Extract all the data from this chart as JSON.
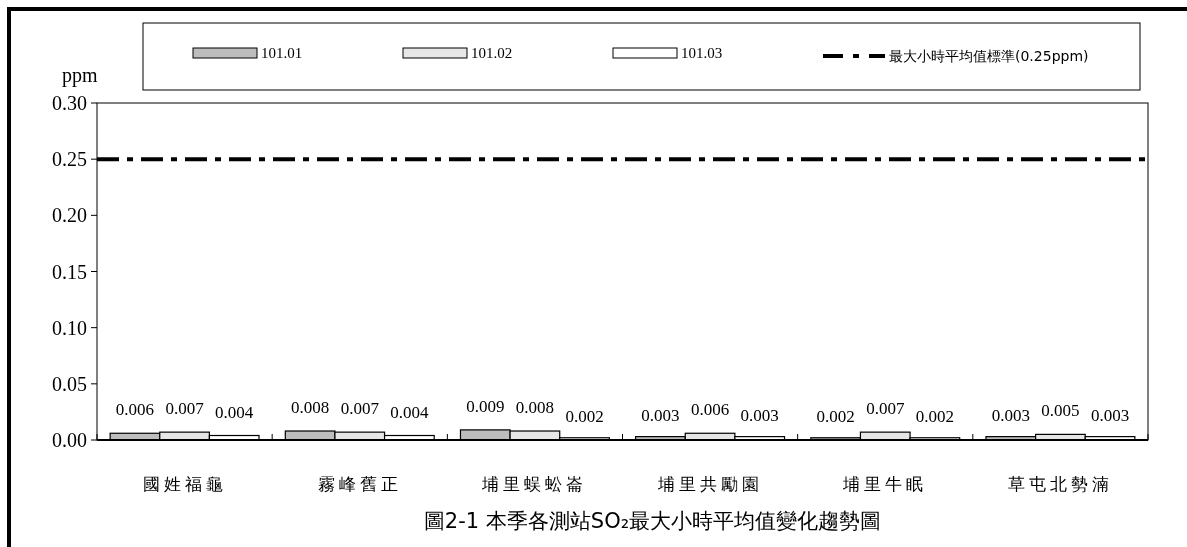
{
  "chart_data": {
    "type": "bar",
    "title": "圖2-1 本季各測站SO₂最大小時平均值變化趨勢圖",
    "ylabel": "ppm",
    "categories": [
      "國姓福龜",
      "霧峰舊正",
      "埔里蜈蚣崙",
      "埔里共勵園",
      "埔里牛眠",
      "草屯北勢湳"
    ],
    "series": [
      {
        "name": "101.01",
        "color": "#bdbdbd",
        "values": [
          0.006,
          0.008,
          0.009,
          0.003,
          0.002,
          0.003
        ]
      },
      {
        "name": "101.02",
        "color": "#e6e6e6",
        "values": [
          0.007,
          0.007,
          0.008,
          0.006,
          0.007,
          0.005
        ]
      },
      {
        "name": "101.03",
        "color": "#ffffff",
        "values": [
          0.004,
          0.004,
          0.002,
          0.003,
          0.002,
          0.003
        ]
      }
    ],
    "ylim": [
      0,
      0.3
    ],
    "yticks": [
      {
        "value": 0,
        "label": "0.00"
      },
      {
        "value": 0.05,
        "label": "0.05"
      },
      {
        "value": 0.1,
        "label": "0.10"
      },
      {
        "value": 0.15,
        "label": "0.15"
      },
      {
        "value": 0.2,
        "label": "0.20"
      },
      {
        "value": 0.25,
        "label": "0.25"
      },
      {
        "value": 0.3,
        "label": "0.30"
      }
    ],
    "ref_lines": [
      {
        "axis": "y",
        "value": 0.25,
        "label": "最大小時平均值標準(0.25ppm)",
        "color": "#000000",
        "line_style": "dashdot"
      }
    ],
    "data_labels": true,
    "legend": "top",
    "grid": false
  }
}
